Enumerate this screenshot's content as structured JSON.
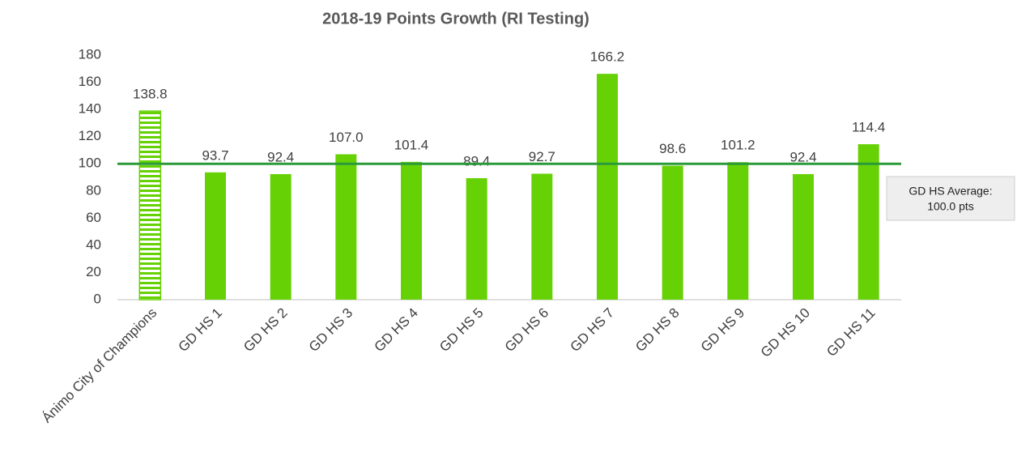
{
  "chart_data": {
    "type": "bar",
    "title": "2018-19 Points Growth (RI Testing)",
    "categories": [
      "Ánimo City of Champions",
      "GD HS 1",
      "GD HS 2",
      "GD HS 3",
      "GD HS 4",
      "GD HS 5",
      "GD HS 6",
      "GD HS 7",
      "GD HS 8",
      "GD HS 9",
      "GD HS 10",
      "GD HS 11"
    ],
    "values": [
      138.8,
      93.7,
      92.4,
      107.0,
      101.4,
      89.4,
      92.7,
      166.2,
      98.6,
      101.2,
      92.4,
      114.4
    ],
    "value_labels": [
      "138.8",
      "93.7",
      "92.4",
      "107.0",
      "101.4",
      "89.4",
      "92.7",
      "166.2",
      "98.6",
      "101.2",
      "92.4",
      "114.4"
    ],
    "color": "#66d104",
    "hatched_category": "Ánimo City of Champions",
    "ylim": [
      0,
      180
    ],
    "yticks": [
      0,
      20,
      40,
      60,
      80,
      100,
      120,
      140,
      160,
      180
    ],
    "grid": false,
    "average": {
      "value": 100,
      "color": "#2a9a3a",
      "label_lines": [
        "GD HS Average:",
        "100.0 pts"
      ]
    }
  }
}
